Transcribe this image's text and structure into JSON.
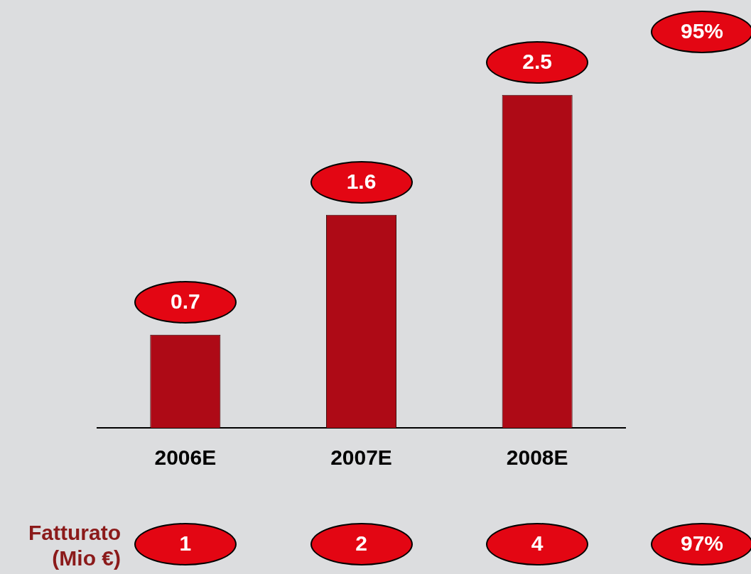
{
  "chart_data": {
    "type": "bar",
    "categories": [
      "2006E",
      "2007E",
      "2008E"
    ],
    "values": [
      0.7,
      1.6,
      2.5
    ],
    "color": "#ae0a16",
    "data_labels": true,
    "grid": false,
    "legend": false,
    "annotations": [
      "95%",
      "Fatturato\n(Mio €)",
      "1",
      "2",
      "4",
      "97%"
    ]
  }
}
